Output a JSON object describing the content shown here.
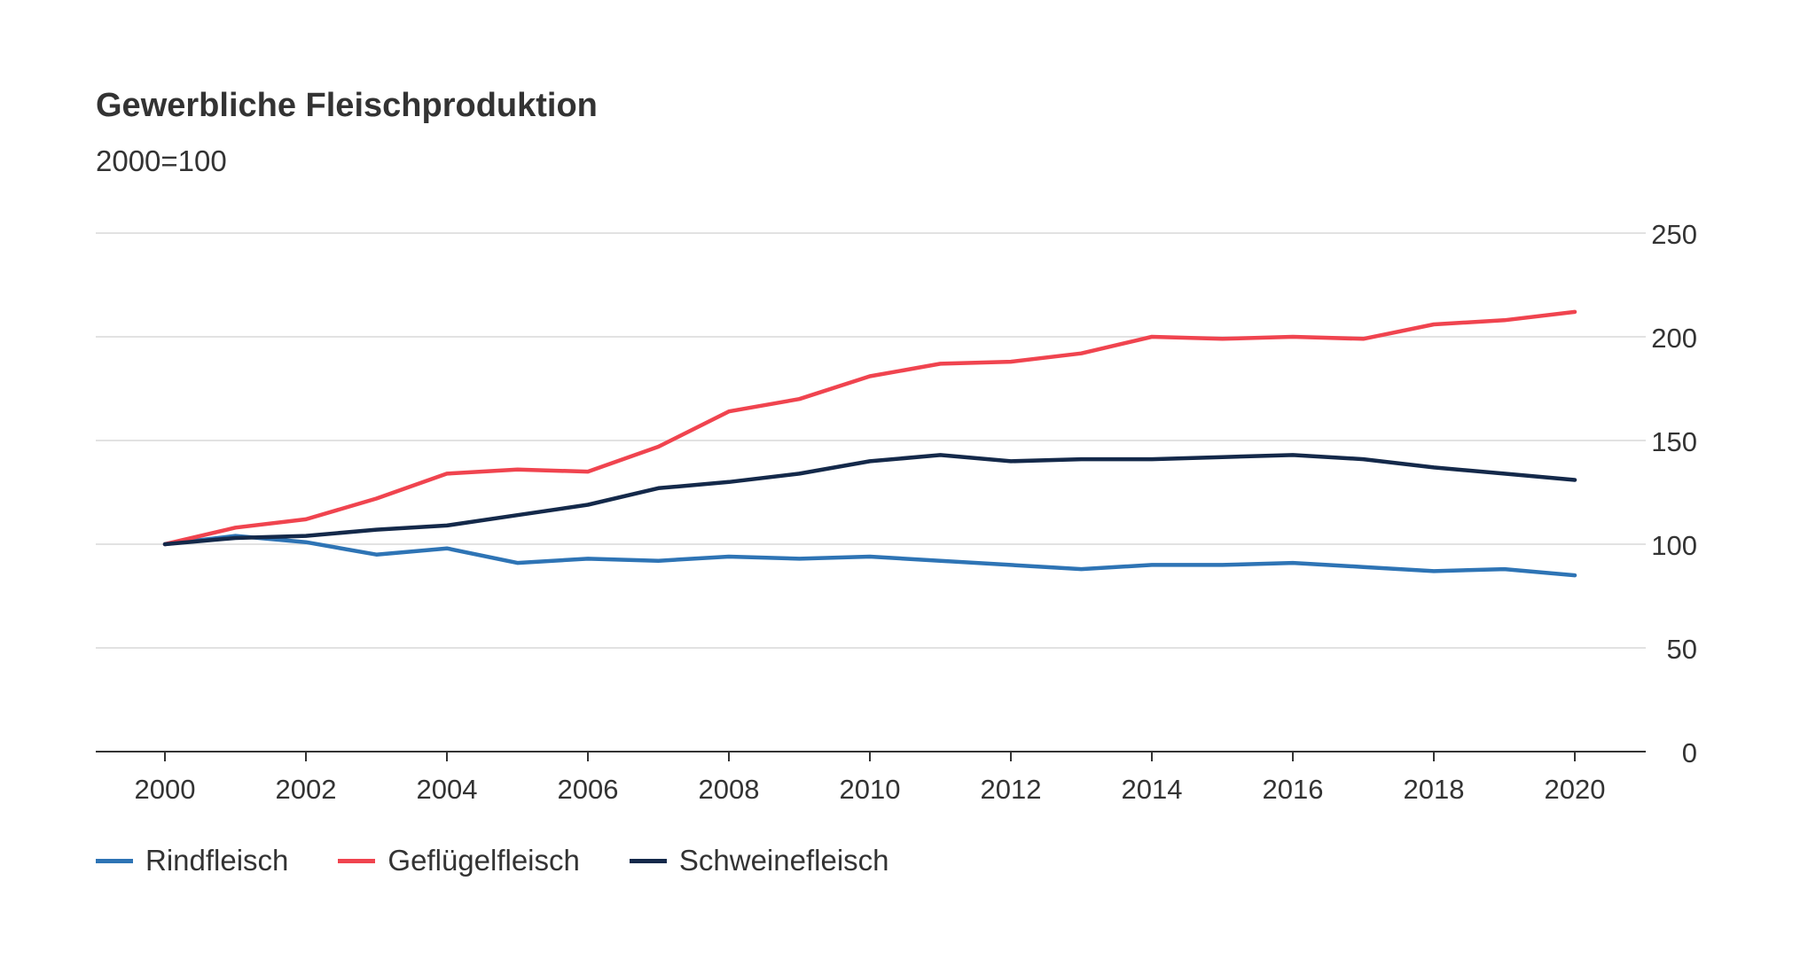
{
  "chart": {
    "title": "Gewerbliche Fleischproduktion",
    "subtitle": "2000=100"
  },
  "colors": {
    "Rindfleisch": "#2e74b5",
    "Geflügelfleisch": "#f0444f",
    "Schweinefleisch": "#14294a",
    "grid": "#d9d9d9",
    "axis": "#333333",
    "text": "#333333"
  },
  "chart_data": {
    "type": "line",
    "title": "Gewerbliche Fleischproduktion",
    "subtitle": "2000=100",
    "x": [
      2000,
      2001,
      2002,
      2003,
      2004,
      2005,
      2006,
      2007,
      2008,
      2009,
      2010,
      2011,
      2012,
      2013,
      2014,
      2015,
      2016,
      2017,
      2018,
      2019,
      2020
    ],
    "x_ticks": [
      "2000",
      "2002",
      "2004",
      "2006",
      "2008",
      "2010",
      "2012",
      "2014",
      "2016",
      "2018",
      "2020"
    ],
    "y_ticks": [
      "0",
      "50",
      "100",
      "150",
      "200",
      "250"
    ],
    "ylim": [
      0,
      250
    ],
    "xlim": [
      1999,
      2021
    ],
    "grid": true,
    "y_axis_position": "right",
    "legend_position": "bottom-left",
    "series": [
      {
        "name": "Rindfleisch",
        "values": [
          100,
          104,
          101,
          95,
          98,
          91,
          93,
          92,
          94,
          93,
          94,
          92,
          90,
          88,
          90,
          90,
          91,
          89,
          87,
          88,
          85
        ]
      },
      {
        "name": "Geflügelfleisch",
        "values": [
          100,
          108,
          112,
          122,
          134,
          136,
          135,
          147,
          164,
          170,
          181,
          187,
          188,
          192,
          200,
          199,
          200,
          199,
          206,
          208,
          212
        ]
      },
      {
        "name": "Schweinefleisch",
        "values": [
          100,
          103,
          104,
          107,
          109,
          114,
          119,
          127,
          130,
          134,
          140,
          143,
          140,
          141,
          141,
          142,
          143,
          141,
          137,
          134,
          131
        ]
      }
    ]
  }
}
